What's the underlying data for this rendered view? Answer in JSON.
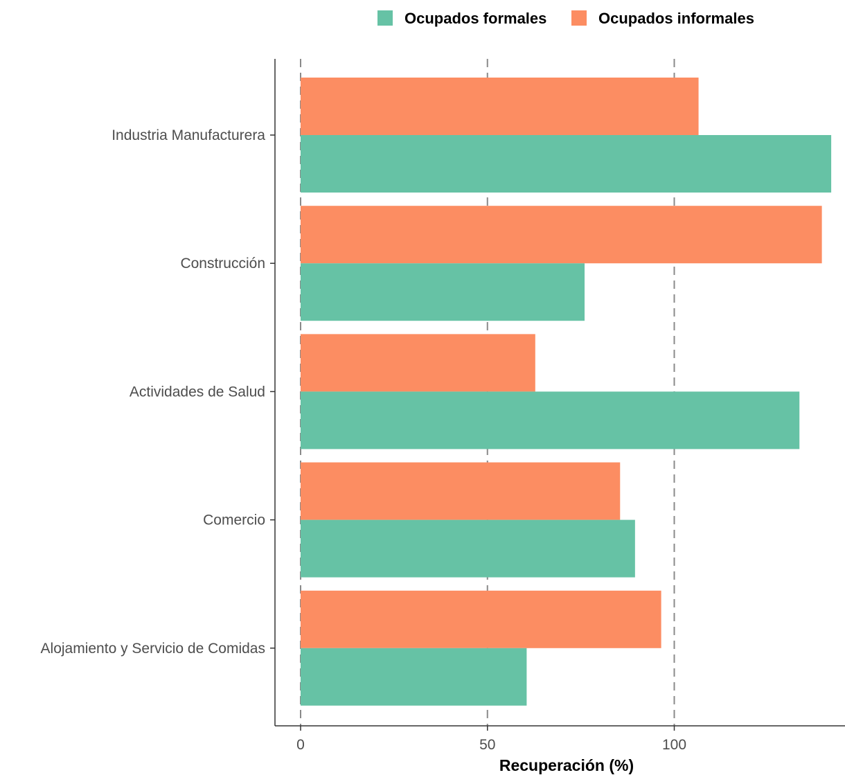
{
  "chart_data": {
    "type": "bar",
    "orientation": "horizontal",
    "xlabel": "Recuperación (%)",
    "ylabel": "",
    "xlim": [
      -3.5,
      145
    ],
    "x_ticks": [
      0,
      50,
      100
    ],
    "grid": "vertical dashed at major ticks",
    "legend_position": "top",
    "categories": [
      "Industria Manufacturera",
      "Construcción",
      "Actividades de Salud",
      "Comercio",
      "Alojamiento y Servicio de Comidas"
    ],
    "series": [
      {
        "name": "Ocupados formales",
        "color": "#66c2a5",
        "values": [
          142,
          76,
          133.5,
          89.5,
          60.5
        ]
      },
      {
        "name": "Ocupados informales",
        "color": "#fc8d62",
        "values": [
          106.5,
          139.5,
          62.8,
          85.5,
          96.5
        ]
      }
    ]
  }
}
